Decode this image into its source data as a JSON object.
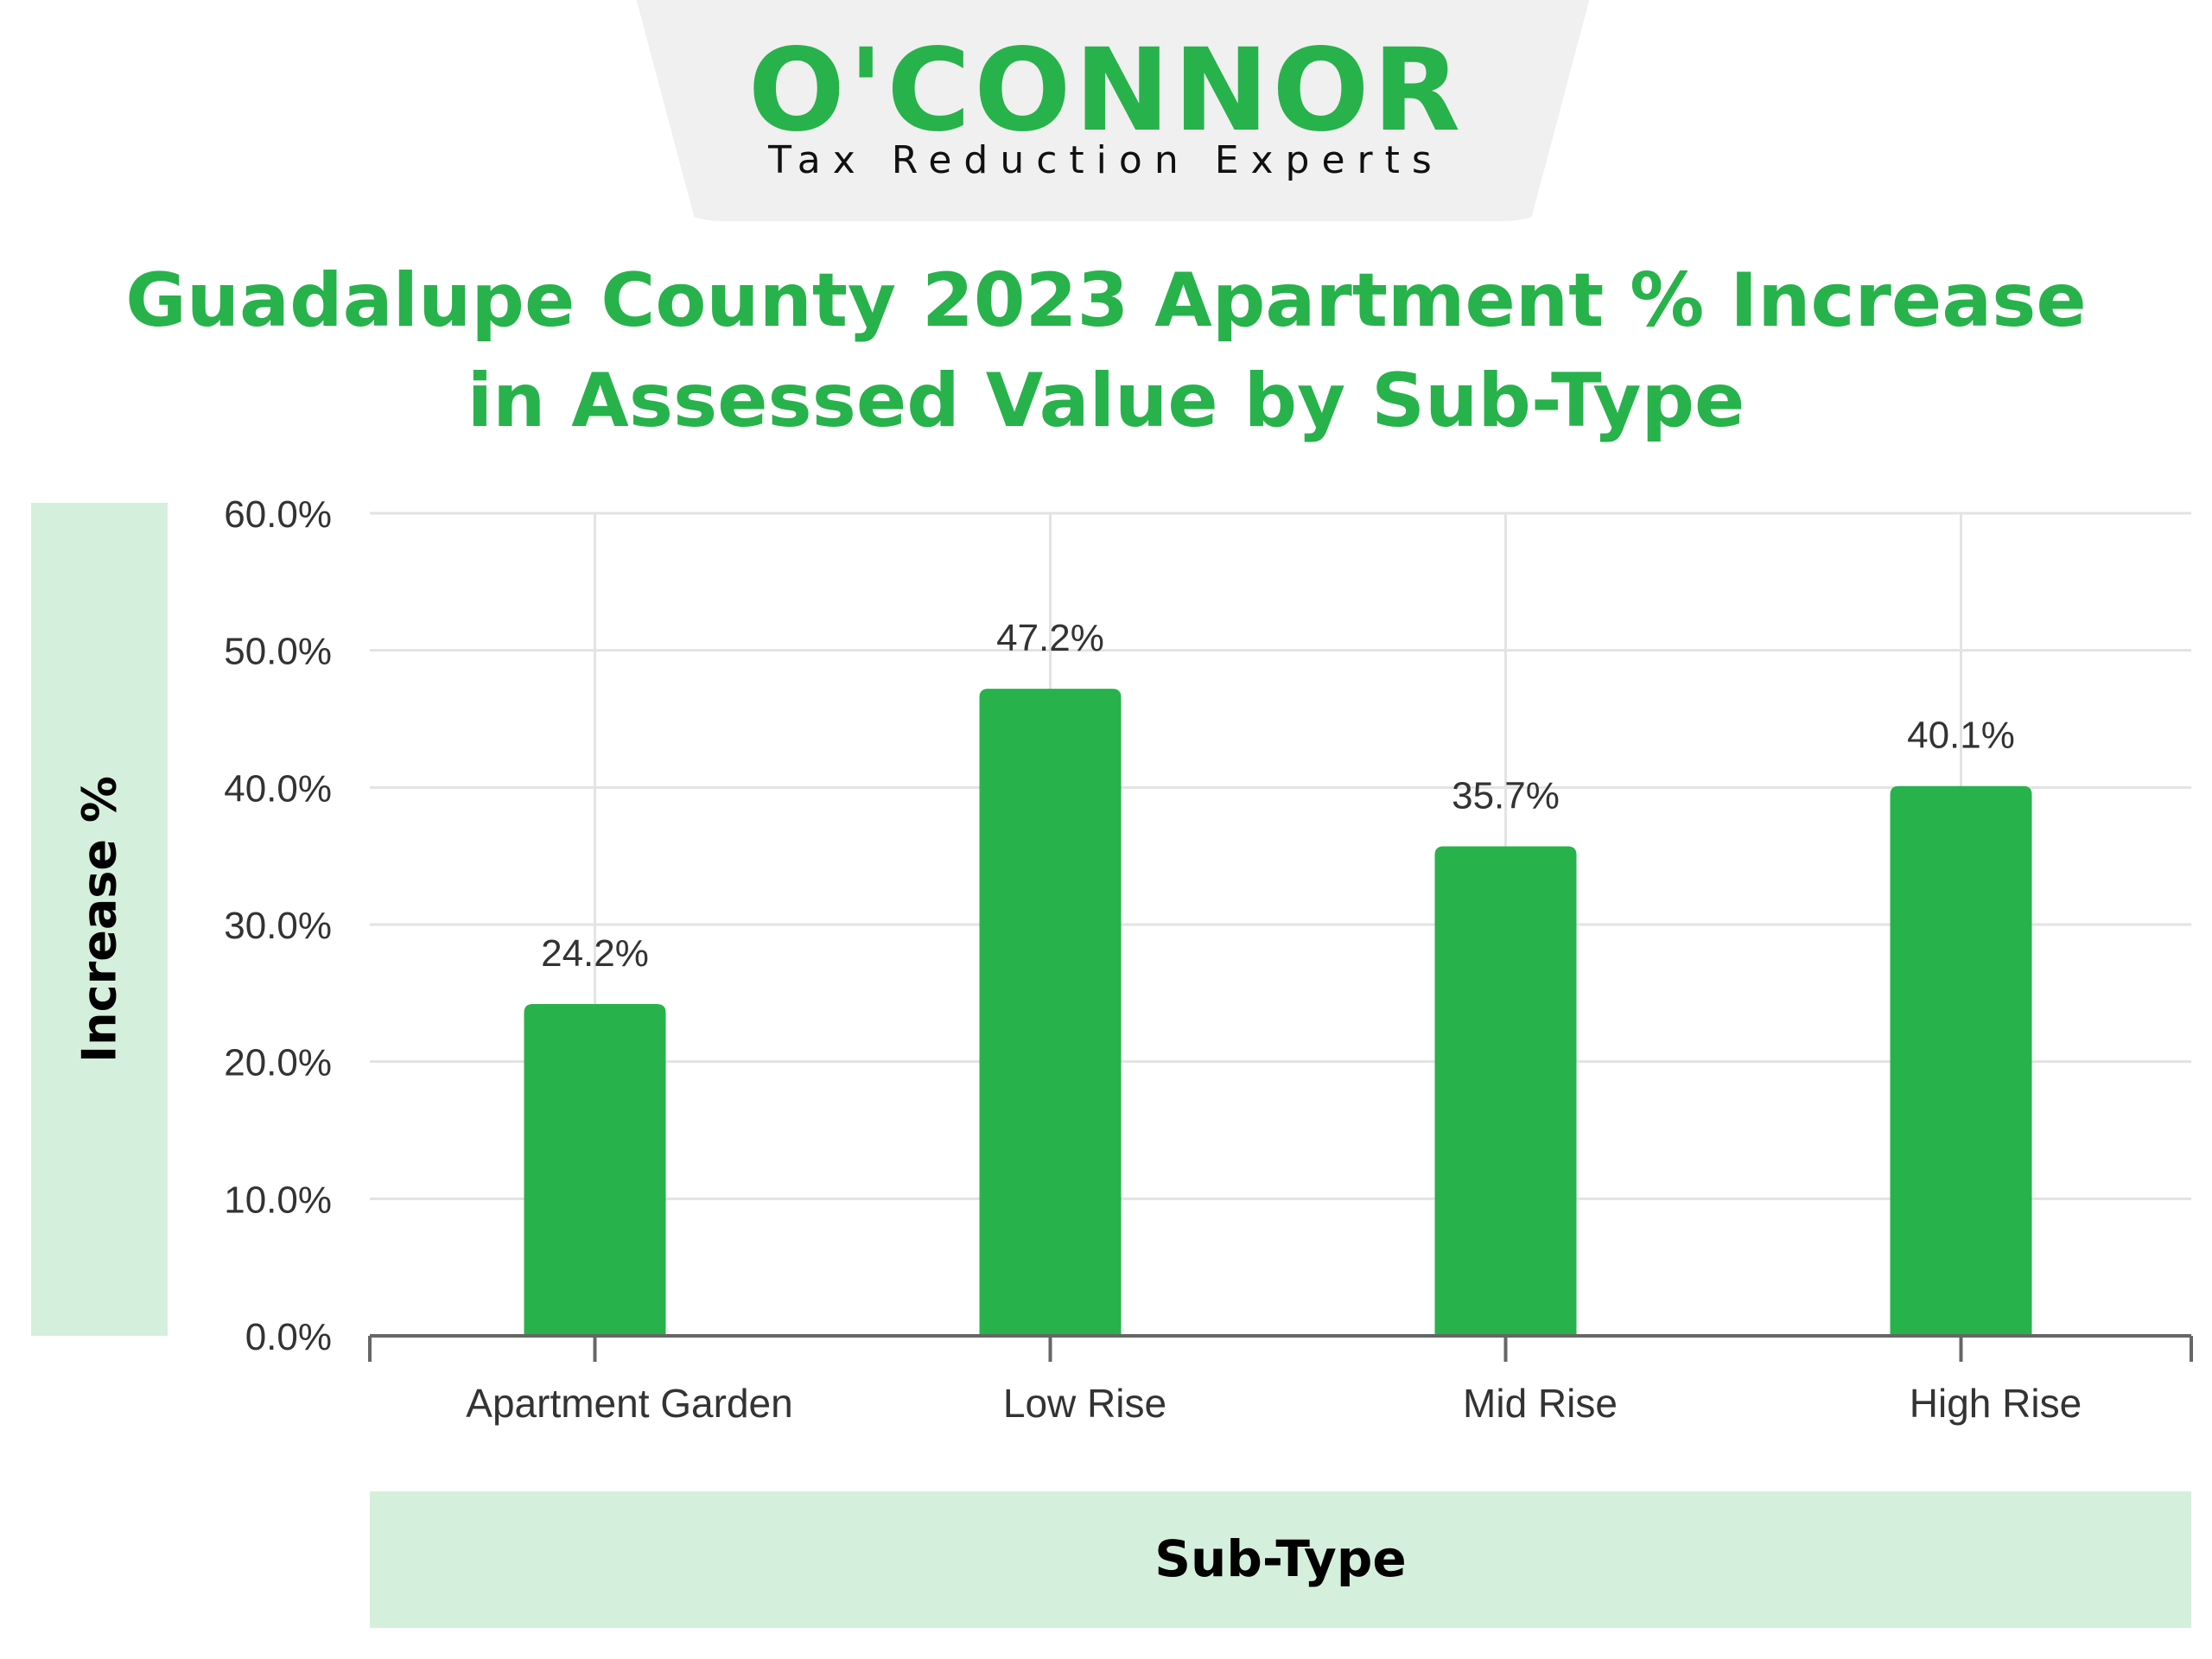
{
  "logo": {
    "wordmark": "O'CONNOR",
    "tagline": "Tax Reduction Experts"
  },
  "colors": {
    "brand_green": "#28b24b",
    "bar": "#28b24b",
    "label_box": "#d5efdd",
    "grid": "#e3e3e3",
    "axis": "#666666",
    "tick_text": "#333333"
  },
  "chart_data": {
    "type": "bar",
    "title": "Guadalupe County 2023 Apartment % Increase\nin Assessed Value by Sub-Type",
    "xlabel": "Sub-Type",
    "ylabel": "Increase %",
    "categories": [
      "Apartment Garden",
      "Low Rise",
      "Mid Rise",
      "High Rise"
    ],
    "values": [
      24.2,
      47.2,
      35.7,
      40.1
    ],
    "data_labels": [
      "24.2%",
      "47.2%",
      "35.7%",
      "40.1%"
    ],
    "ylim": [
      0,
      60
    ],
    "y_ticks": [
      0,
      10,
      20,
      30,
      40,
      50,
      60
    ],
    "y_tick_labels": [
      "0.0%",
      "10.0%",
      "20.0%",
      "30.0%",
      "40.0%",
      "50.0%",
      "60.0%"
    ],
    "grid": true,
    "legend": "none"
  }
}
